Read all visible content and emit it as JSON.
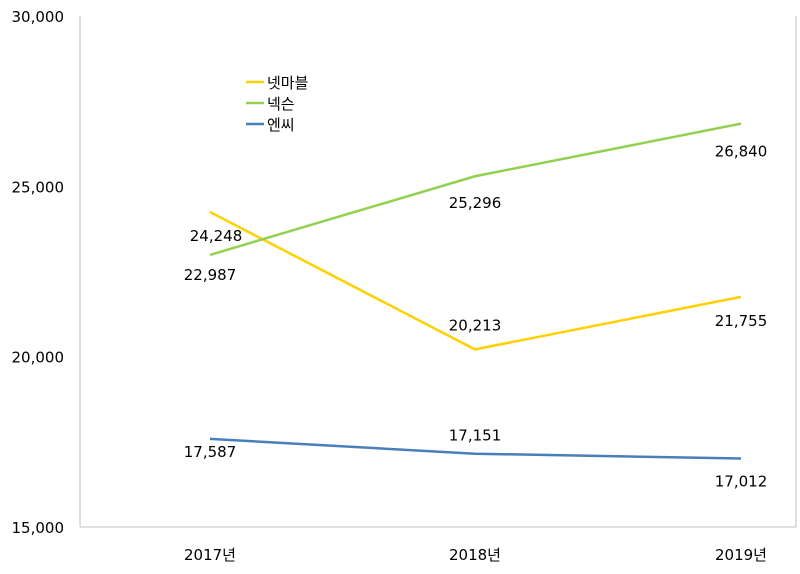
{
  "chart_data": {
    "type": "line",
    "title": "",
    "xlabel": "",
    "ylabel": "",
    "categories": [
      "2017년",
      "2018년",
      "2019년"
    ],
    "ylim": [
      15000,
      30000
    ],
    "yticks": [
      15000,
      20000,
      25000,
      30000
    ],
    "ytick_labels": [
      "15,000",
      "20,000",
      "25,000",
      "30,000"
    ],
    "grid": false,
    "legend_position": "top-left inside",
    "series": [
      {
        "name": "넷마블",
        "color": "#FFD000",
        "values": [
          24248,
          20213,
          21755
        ],
        "labels": [
          "24,248",
          "20,213",
          "21,755"
        ]
      },
      {
        "name": "넥슨",
        "color": "#92D050",
        "values": [
          22987,
          25296,
          26840
        ],
        "labels": [
          "22,987",
          "25,296",
          "26,840"
        ]
      },
      {
        "name": "엔씨",
        "color": "#4A7EBB",
        "values": [
          17587,
          17151,
          17012
        ],
        "labels": [
          "17,587",
          "17,151",
          "17,012"
        ]
      }
    ]
  }
}
